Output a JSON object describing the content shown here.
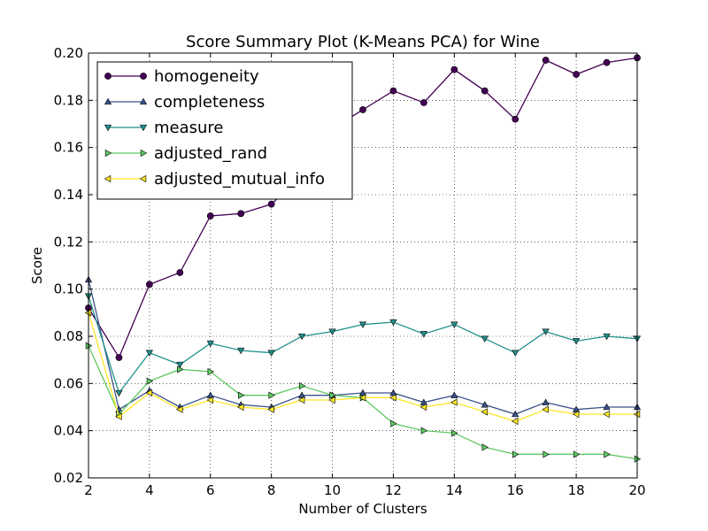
{
  "chart_data": {
    "type": "line",
    "title": "Score Summary Plot (K-Means PCA) for Wine",
    "xlabel": "Number of Clusters",
    "ylabel": "Score",
    "xlim": [
      2,
      20
    ],
    "ylim": [
      0.02,
      0.2
    ],
    "xticks": [
      "2",
      "4",
      "6",
      "8",
      "10",
      "12",
      "14",
      "16",
      "18",
      "20"
    ],
    "yticks": [
      "0.02",
      "0.04",
      "0.06",
      "0.08",
      "0.10",
      "0.12",
      "0.14",
      "0.16",
      "0.18",
      "0.20"
    ],
    "grid": true,
    "legend_position": "top-left",
    "x": [
      2,
      3,
      4,
      5,
      6,
      7,
      8,
      9,
      10,
      11,
      12,
      13,
      14,
      15,
      16,
      17,
      18,
      19,
      20
    ],
    "series": [
      {
        "name": "homogeneity",
        "color": "#440154",
        "marker": "circle",
        "values": [
          0.092,
          0.071,
          0.102,
          0.107,
          0.131,
          0.132,
          0.136,
          0.148,
          0.168,
          0.176,
          0.184,
          0.179,
          0.193,
          0.184,
          0.172,
          0.197,
          0.191,
          0.196,
          0.198
        ]
      },
      {
        "name": "completeness",
        "color": "#3b528b",
        "marker": "triangle-up",
        "values": [
          0.104,
          0.049,
          0.057,
          0.05,
          0.055,
          0.051,
          0.05,
          0.055,
          0.055,
          0.056,
          0.056,
          0.052,
          0.055,
          0.051,
          0.047,
          0.052,
          0.049,
          0.05,
          0.05
        ]
      },
      {
        "name": "measure",
        "color": "#21918c",
        "marker": "triangle-down",
        "values": [
          0.097,
          0.056,
          0.073,
          0.068,
          0.077,
          0.074,
          0.073,
          0.08,
          0.082,
          0.085,
          0.086,
          0.081,
          0.085,
          0.079,
          0.073,
          0.082,
          0.078,
          0.08,
          0.079
        ]
      },
      {
        "name": "adjusted_rand",
        "color": "#5ec962",
        "marker": "triangle-right",
        "values": [
          0.076,
          0.047,
          0.061,
          0.066,
          0.065,
          0.055,
          0.055,
          0.059,
          0.055,
          0.054,
          0.043,
          0.04,
          0.039,
          0.033,
          0.03,
          0.03,
          0.03,
          0.03,
          0.028
        ]
      },
      {
        "name": "adjusted_mutual_info",
        "color": "#fde725",
        "marker": "triangle-left",
        "values": [
          0.09,
          0.046,
          0.056,
          0.049,
          0.053,
          0.05,
          0.049,
          0.053,
          0.053,
          0.054,
          0.054,
          0.05,
          0.052,
          0.048,
          0.044,
          0.049,
          0.047,
          0.047,
          0.047
        ]
      }
    ]
  }
}
